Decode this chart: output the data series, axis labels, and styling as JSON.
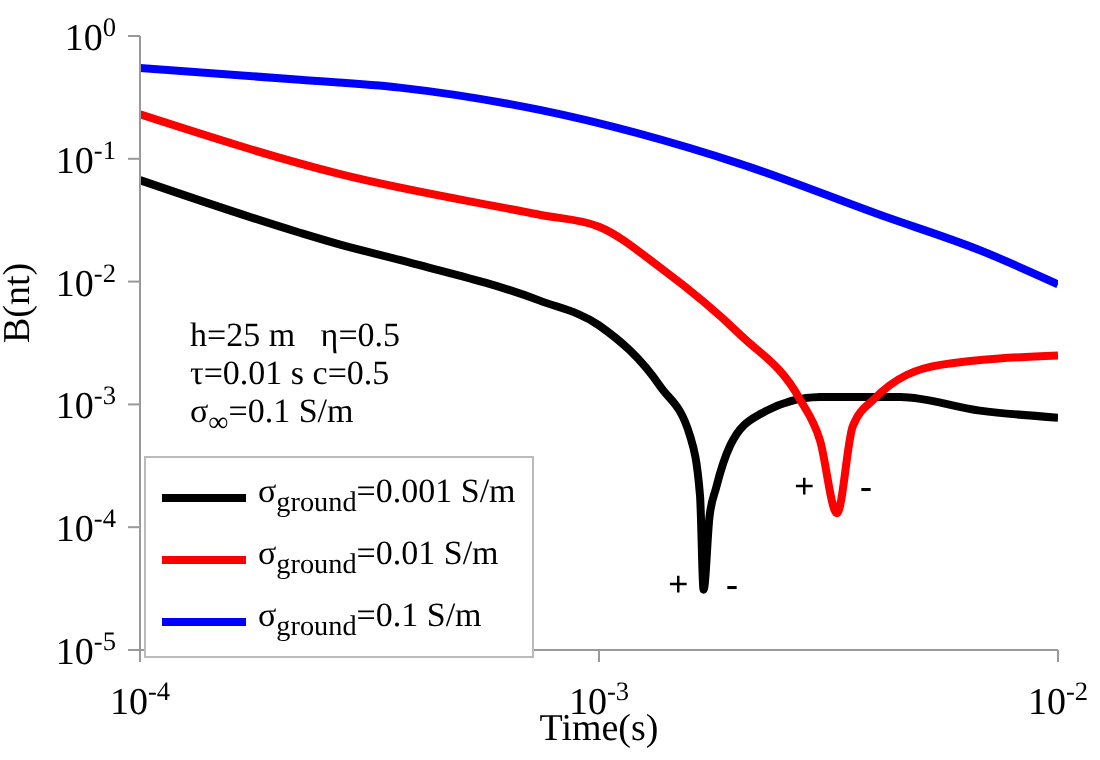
{
  "chart_data": {
    "type": "line",
    "xlabel": "Time(s)",
    "ylabel": "B(nt)",
    "log": "xy",
    "xlim": [
      0.0001,
      0.01
    ],
    "ylim": [
      1e-05,
      1
    ],
    "xticks": [
      {
        "value": 0.0001,
        "label": "10$^{-4}$"
      },
      {
        "value": 0.001,
        "label": "10$^{-3}$"
      },
      {
        "value": 0.01,
        "label": "10$^{-2}$"
      }
    ],
    "yticks": [
      {
        "value": 1e-05,
        "label": "10$^{-5}$"
      },
      {
        "value": 0.0001,
        "label": "10$^{-4}$"
      },
      {
        "value": 0.001,
        "label": "10$^{-3}$"
      },
      {
        "value": 0.01,
        "label": "10$^{-2}$"
      },
      {
        "value": 0.1,
        "label": "10$^{-1}$"
      },
      {
        "value": 1,
        "label": "10$^{0}$"
      }
    ],
    "grid": false,
    "legend": "bottom left",
    "marker": "none",
    "line_style": "solid",
    "series": [
      {
        "name": "σ$_{ground}$=0.001 S/m",
        "color": "#000000",
        "x": [
          0.0001,
          0.000223,
          0.000273,
          0.000368,
          0.000743,
          0.001,
          0.00136,
          0.00158,
          0.00166,
          0.00169,
          0.00174,
          0.0018,
          0.00193,
          0.00224,
          0.00303,
          0.00453,
          0.00676,
          0.01
        ],
        "values": [
          0.067,
          0.025,
          0.02,
          0.015,
          0.007,
          0.0044,
          0.0014,
          0.00055,
          0.00018,
          3.1e-05,
          0.00012,
          0.00021,
          0.00046,
          0.00083,
          0.00115,
          0.00115,
          0.00089,
          0.00078
        ]
      },
      {
        "name": "σ$_{ground}$=0.01 S/m",
        "color": "#ff0000",
        "x": [
          0.0001,
          0.000273,
          0.000743,
          0.001,
          0.00136,
          0.00203,
          0.00274,
          0.00303,
          0.0033,
          0.00357,
          0.00397,
          0.00554,
          0.01
        ],
        "values": [
          0.23,
          0.075,
          0.035,
          0.028,
          0.013,
          0.0037,
          0.0011,
          0.00051,
          0.00013,
          0.00066,
          0.0011,
          0.0021,
          0.0025
        ]
      },
      {
        "name": "σ$_{ground}$=0.1 S/m",
        "color": "#0000ff",
        "x": [
          0.0001,
          0.000223,
          0.000368,
          0.000743,
          0.00203,
          0.00409,
          0.00676,
          0.01
        ],
        "values": [
          0.55,
          0.44,
          0.38,
          0.25,
          0.091,
          0.035,
          0.018,
          0.0095
        ]
      }
    ],
    "annotations": [
      "h=25 m   η=0.5",
      "τ=0.01 s c=0.5",
      "σ$_{∞}$=0.1 S/m",
      "+",
      "-",
      "+",
      "-"
    ]
  }
}
